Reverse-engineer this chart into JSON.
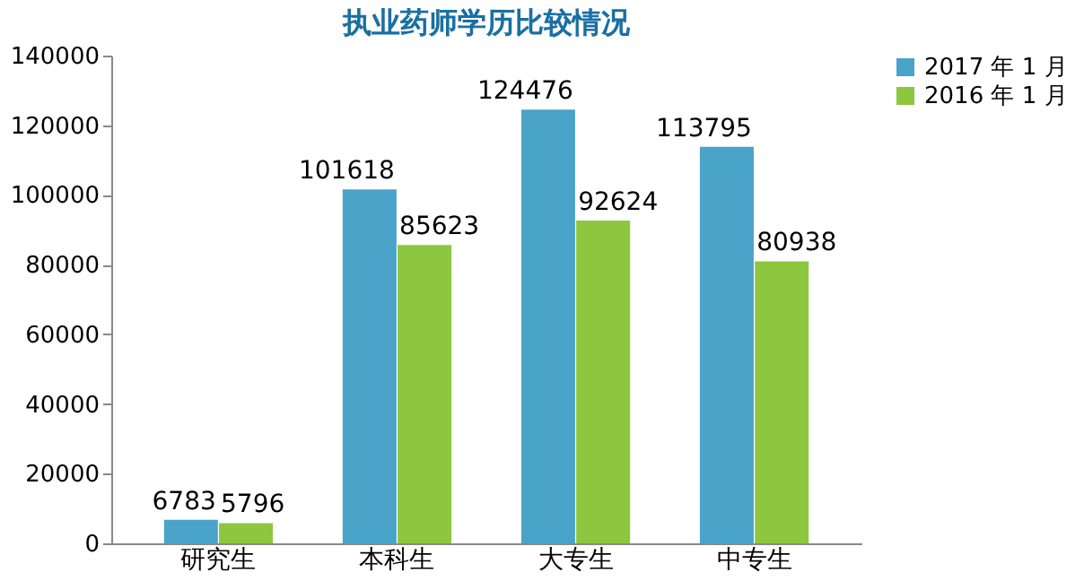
{
  "chart_data": {
    "type": "bar",
    "title": "执业药师学历比较情况",
    "categories": [
      "研究生",
      "本科生",
      "大专生",
      "中专生"
    ],
    "series": [
      {
        "name": "2017 年 1 月",
        "color": "#4aa3c8",
        "values": [
          6783,
          101618,
          124476,
          113795
        ]
      },
      {
        "name": "2016 年 1 月",
        "color": "#8dc63f",
        "values": [
          5796,
          85623,
          92624,
          80938
        ]
      }
    ],
    "ylim": [
      0,
      140000
    ],
    "yticks": [
      0,
      20000,
      40000,
      60000,
      80000,
      100000,
      120000,
      140000
    ],
    "data_labels": true,
    "grid": false,
    "legend": "right"
  }
}
